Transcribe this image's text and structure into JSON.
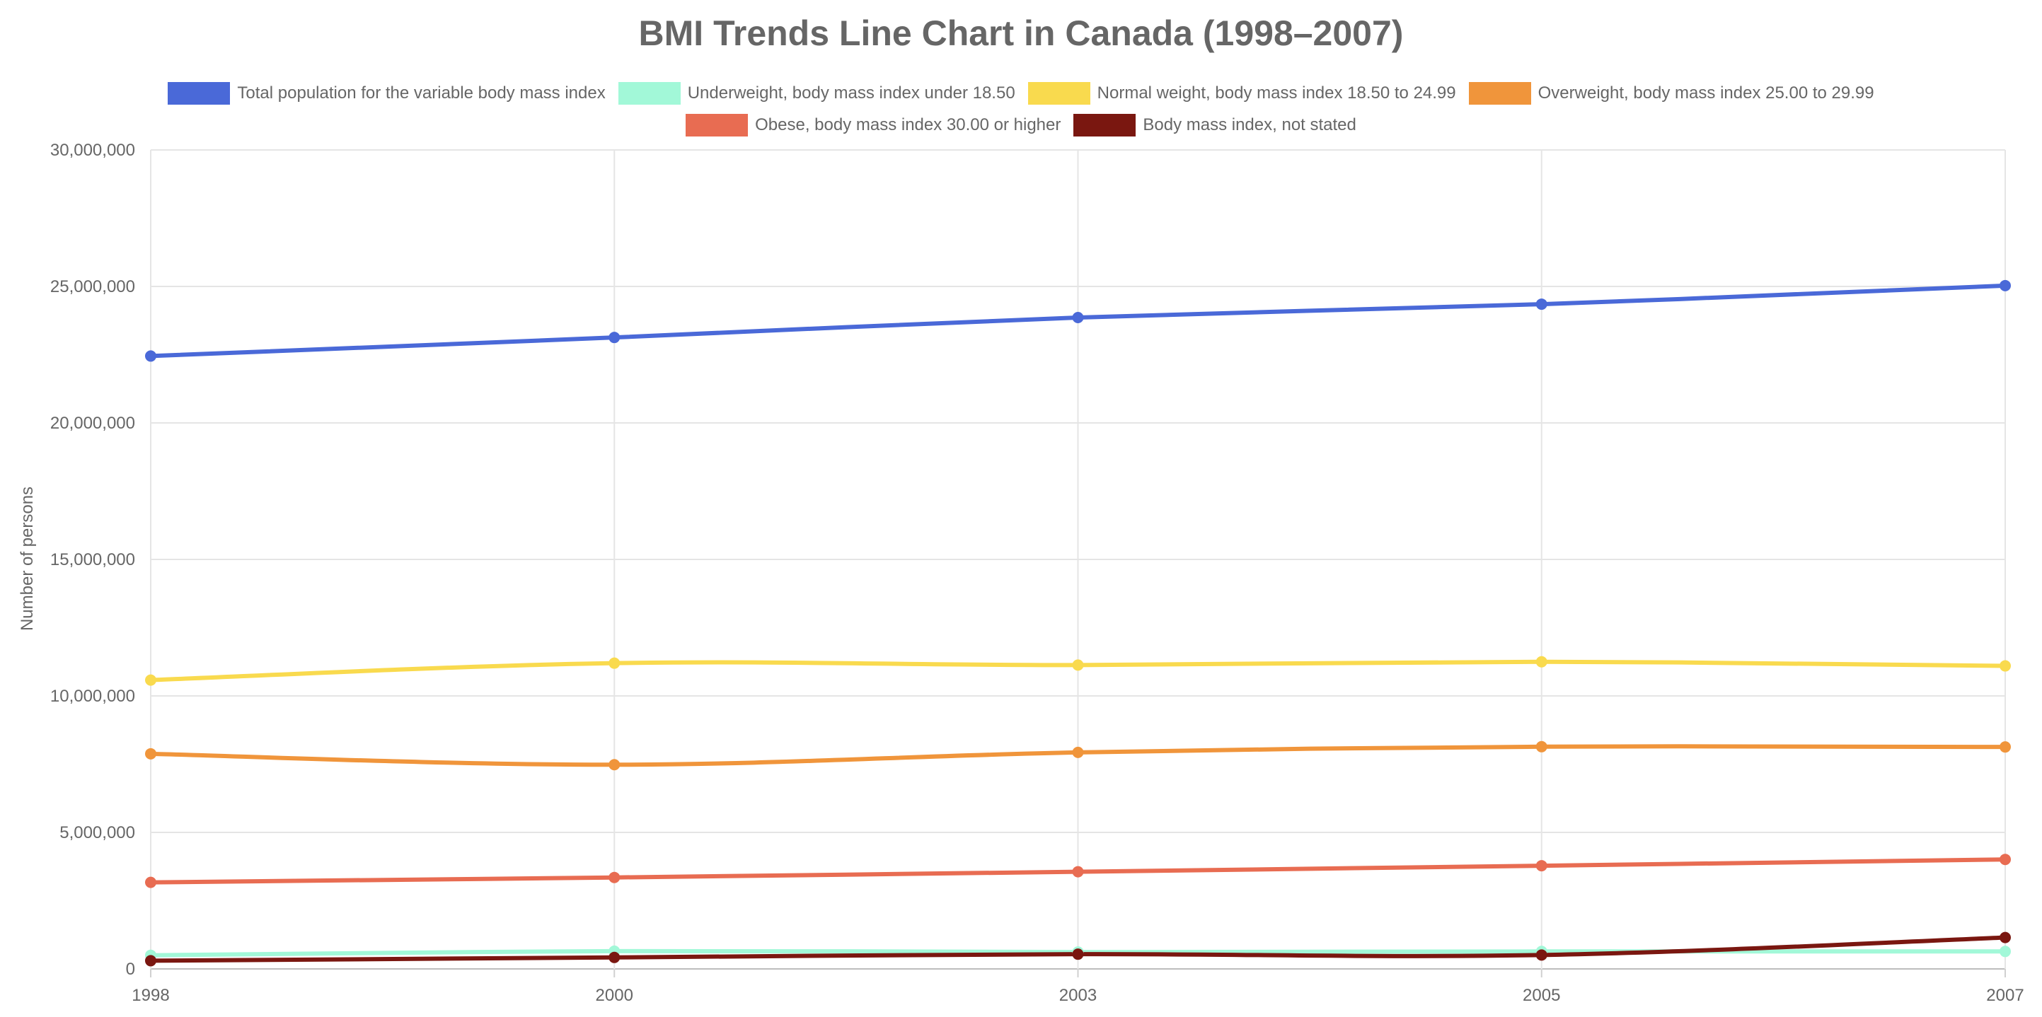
{
  "chart_data": {
    "type": "line",
    "title": "BMI Trends Line Chart in Canada (1998–2007)",
    "xlabel": "",
    "ylabel": "Number of persons",
    "categories": [
      "1998",
      "2000",
      "2003",
      "2005",
      "2007"
    ],
    "ylim": [
      0,
      30000000
    ],
    "yticks": [
      0,
      5000000,
      10000000,
      15000000,
      20000000,
      25000000,
      30000000
    ],
    "ytick_labels": [
      "0",
      "5,000,000",
      "10,000,000",
      "15,000,000",
      "20,000,000",
      "25,000,000",
      "30,000,000"
    ],
    "grid": true,
    "legend_position": "top",
    "series": [
      {
        "name": "Total population for the variable body mass index",
        "color": "#4a69d8",
        "values": [
          22450000,
          23130000,
          23860000,
          24350000,
          25030000
        ]
      },
      {
        "name": "Underweight, body mass index under 18.50",
        "color": "#a2f8d8",
        "values": [
          500000,
          650000,
          620000,
          640000,
          640000
        ]
      },
      {
        "name": "Normal weight, body mass index 18.50 to 24.99",
        "color": "#f9da4e",
        "values": [
          10580000,
          11200000,
          11130000,
          11250000,
          11100000
        ]
      },
      {
        "name": "Overweight, body mass index 25.00 to 29.99",
        "color": "#f0953b",
        "values": [
          7880000,
          7480000,
          7930000,
          8140000,
          8130000
        ]
      },
      {
        "name": "Obese, body mass index 30.00 or higher",
        "color": "#e86c52",
        "values": [
          3170000,
          3350000,
          3560000,
          3780000,
          4010000
        ]
      },
      {
        "name": "Body mass index, not stated",
        "color": "#7a1710",
        "values": [
          300000,
          420000,
          540000,
          510000,
          1150000
        ]
      }
    ]
  }
}
